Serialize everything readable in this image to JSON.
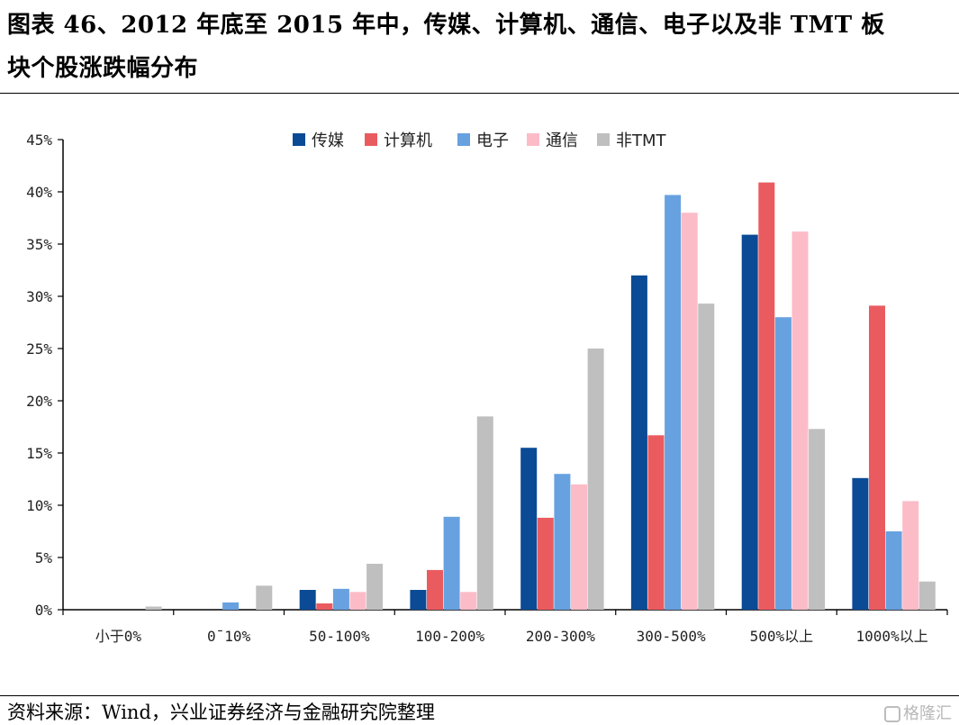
{
  "header": {
    "title_line1": "图表 46、2012 年底至 2015 年中，传媒、计算机、通信、电子以及非 TMT 板",
    "title_line2": "块个股涨跌幅分布"
  },
  "footer": {
    "source": "资料来源：Wind，兴业证券经济与金融研究院整理",
    "watermark": "格隆汇"
  },
  "chart_data": {
    "type": "bar",
    "title": "",
    "xlabel": "",
    "ylabel": "",
    "ylim": [
      0,
      45
    ],
    "yticks": [
      0,
      5,
      10,
      15,
      20,
      25,
      30,
      35,
      40,
      45
    ],
    "ytick_labels": [
      "0%",
      "5%",
      "10%",
      "15%",
      "20%",
      "25%",
      "30%",
      "35%",
      "40%",
      "45%"
    ],
    "grid": false,
    "legend_position": "top-center",
    "categories": [
      "小于0%",
      "0¯10%",
      "50-100%",
      "100-200%",
      "200-300%",
      "300-500%",
      "500%以上",
      "1000%以上"
    ],
    "series": [
      {
        "name": "传媒",
        "color": "#0b4b95",
        "values": [
          0.0,
          0.0,
          1.9,
          1.9,
          15.5,
          32.0,
          35.9,
          12.6
        ]
      },
      {
        "name": "计算机",
        "color": "#ea5b60",
        "values": [
          0.0,
          0.0,
          0.6,
          3.8,
          8.8,
          16.7,
          40.9,
          29.1
        ]
      },
      {
        "name": "电子",
        "color": "#67a1e0",
        "values": [
          0.0,
          0.7,
          2.0,
          8.9,
          13.0,
          39.7,
          28.0,
          7.5
        ]
      },
      {
        "name": "通信",
        "color": "#fbbcc8",
        "values": [
          0.0,
          0.0,
          1.7,
          1.7,
          12.0,
          38.0,
          36.2,
          10.4
        ]
      },
      {
        "name": "非TMT",
        "color": "#bfbfbf",
        "values": [
          0.3,
          2.3,
          4.4,
          18.5,
          25.0,
          29.3,
          17.3,
          2.7
        ]
      }
    ]
  }
}
